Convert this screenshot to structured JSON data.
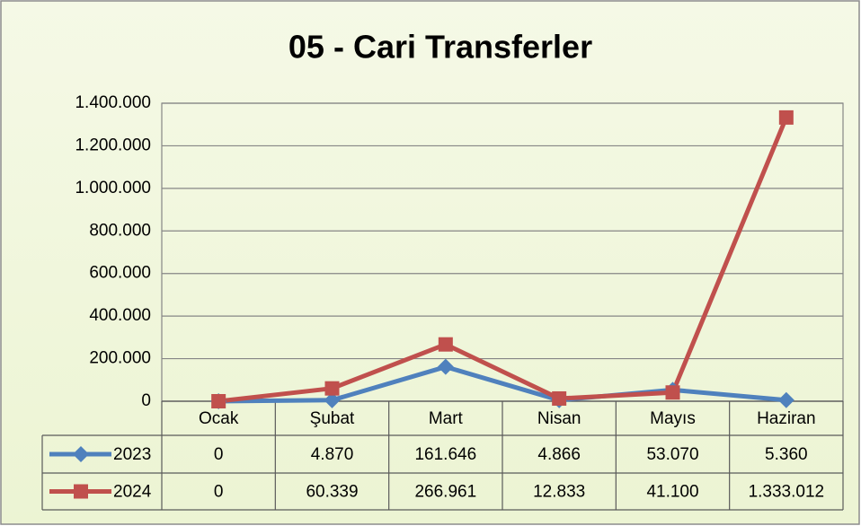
{
  "chart_data": {
    "type": "line",
    "title": "05 - Cari Transferler",
    "categories": [
      "Ocak",
      "Şubat",
      "Mart",
      "Nisan",
      "Mayıs",
      "Haziran"
    ],
    "series": [
      {
        "name": "2023",
        "color": "#4f81bd",
        "marker": "diamond",
        "values": [
          0,
          4870,
          161646,
          4866,
          53070,
          5360
        ],
        "value_labels": [
          "0",
          "4.870",
          "161.646",
          "4.866",
          "53.070",
          "5.360"
        ]
      },
      {
        "name": "2024",
        "color": "#c0504d",
        "marker": "square",
        "values": [
          0,
          60339,
          266961,
          12833,
          41100,
          1333012
        ],
        "value_labels": [
          "0",
          "60.339",
          "266.961",
          "12.833",
          "41.100",
          "1.333.012"
        ]
      }
    ],
    "ylim": [
      0,
      1400000
    ],
    "yticks": [
      0,
      {
        "value": 200000,
        "label": "200.000"
      },
      {
        "value": 400000,
        "label": "400.000"
      },
      {
        "value": 600000,
        "label": "600.000"
      },
      {
        "value": 800000,
        "label": "800.000"
      },
      {
        "value": 1000000,
        "label": "1.000.000"
      },
      {
        "value": 1200000,
        "label": "1.200.000"
      },
      {
        "value": 1400000,
        "label": "1.400.000"
      }
    ],
    "grid": true,
    "data_table": true
  }
}
